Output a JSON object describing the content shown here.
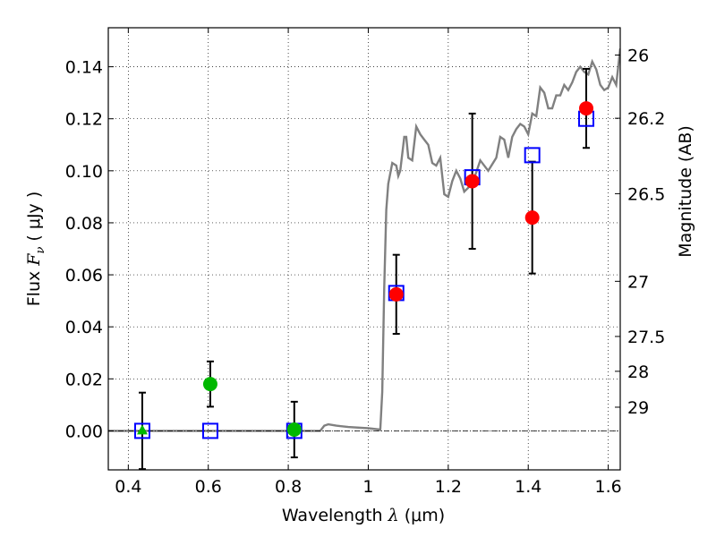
{
  "chart_data": {
    "type": "scatter",
    "xlabel": {
      "prefix": "Wavelength  ",
      "symbol": "λ",
      "unit": " (μm)"
    },
    "ylabel": {
      "prefix": "Flux  ",
      "symbol": "F",
      "sub": "ν",
      "unit": "  ( μJy )"
    },
    "y2label": "Magnitude (AB)",
    "xlim": [
      0.35,
      1.63
    ],
    "ylim": [
      -0.015,
      0.155
    ],
    "grid": true,
    "x_ticks": [
      {
        "v": 0.4,
        "label": "0.4"
      },
      {
        "v": 0.6,
        "label": "0.6"
      },
      {
        "v": 0.8,
        "label": "0.8"
      },
      {
        "v": 1.0,
        "label": "1"
      },
      {
        "v": 1.2,
        "label": "1.2"
      },
      {
        "v": 1.4,
        "label": "1.4"
      },
      {
        "v": 1.6,
        "label": "1.6"
      }
    ],
    "y_ticks": [
      {
        "v": 0.0,
        "label": "0.00"
      },
      {
        "v": 0.02,
        "label": "0.02"
      },
      {
        "v": 0.04,
        "label": "0.04"
      },
      {
        "v": 0.06,
        "label": "0.06"
      },
      {
        "v": 0.08,
        "label": "0.08"
      },
      {
        "v": 0.1,
        "label": "0.10"
      },
      {
        "v": 0.12,
        "label": "0.12"
      },
      {
        "v": 0.14,
        "label": "0.14"
      }
    ],
    "y2_ticks": [
      {
        "flux": 0.1445,
        "label": "26"
      },
      {
        "flux": 0.1202,
        "label": "26.2"
      },
      {
        "flux": 0.0912,
        "label": "26.5"
      },
      {
        "flux": 0.0575,
        "label": "27"
      },
      {
        "flux": 0.0363,
        "label": "27.5"
      },
      {
        "flux": 0.0229,
        "label": "28"
      },
      {
        "flux": 0.0091,
        "label": "29"
      }
    ],
    "model_spectrum": {
      "color": "#808080",
      "x": [
        0.35,
        0.88,
        0.885,
        0.89,
        0.9,
        0.92,
        0.95,
        1.0,
        1.03,
        1.035,
        1.04,
        1.045,
        1.05,
        1.06,
        1.07,
        1.075,
        1.08,
        1.09,
        1.095,
        1.1,
        1.11,
        1.12,
        1.13,
        1.14,
        1.15,
        1.16,
        1.17,
        1.18,
        1.19,
        1.2,
        1.21,
        1.22,
        1.23,
        1.24,
        1.26,
        1.28,
        1.3,
        1.32,
        1.33,
        1.34,
        1.35,
        1.36,
        1.37,
        1.38,
        1.39,
        1.4,
        1.41,
        1.42,
        1.43,
        1.44,
        1.45,
        1.46,
        1.47,
        1.48,
        1.49,
        1.5,
        1.51,
        1.52,
        1.53,
        1.54,
        1.55,
        1.56,
        1.57,
        1.58,
        1.59,
        1.6,
        1.61,
        1.62,
        1.63
      ],
      "y": [
        0.0,
        0.0,
        0.001,
        0.002,
        0.0025,
        0.002,
        0.0015,
        0.001,
        0.0005,
        0.015,
        0.055,
        0.085,
        0.095,
        0.103,
        0.102,
        0.098,
        0.1,
        0.113,
        0.113,
        0.105,
        0.104,
        0.117,
        0.114,
        0.112,
        0.11,
        0.103,
        0.102,
        0.105,
        0.091,
        0.09,
        0.096,
        0.1,
        0.097,
        0.092,
        0.095,
        0.104,
        0.1,
        0.105,
        0.113,
        0.112,
        0.105,
        0.113,
        0.116,
        0.118,
        0.117,
        0.114,
        0.122,
        0.121,
        0.132,
        0.13,
        0.124,
        0.124,
        0.129,
        0.129,
        0.133,
        0.131,
        0.134,
        0.138,
        0.14,
        0.138,
        0.137,
        0.142,
        0.139,
        0.133,
        0.131,
        0.132,
        0.136,
        0.133,
        0.147
      ]
    },
    "series": [
      {
        "role": "observed_detections",
        "color": "#ff0000",
        "marker": "circle",
        "points": [
          {
            "x": 1.07,
            "y": 0.0525,
            "err": 0.0152
          },
          {
            "x": 1.26,
            "y": 0.096,
            "err": 0.026
          },
          {
            "x": 1.41,
            "y": 0.082,
            "err": 0.0215
          },
          {
            "x": 1.545,
            "y": 0.124,
            "err": 0.0152
          }
        ]
      },
      {
        "role": "observed_optical",
        "color": "#00b800",
        "marker": "circle",
        "points": [
          {
            "x": 0.605,
            "y": 0.018,
            "err": 0.0087
          },
          {
            "x": 0.815,
            "y": 0.0005,
            "err": 0.0107
          }
        ]
      },
      {
        "role": "observed_upper_limit",
        "color": "#00b800",
        "marker": "triangle",
        "points": [
          {
            "x": 0.435,
            "y": 0.0,
            "err": 0.0147
          }
        ]
      },
      {
        "role": "model_photometry",
        "color": "#0000ff",
        "marker": "open-square",
        "points": [
          {
            "x": 0.435,
            "y": 0.0
          },
          {
            "x": 0.605,
            "y": 0.0
          },
          {
            "x": 0.815,
            "y": 0.0
          },
          {
            "x": 1.07,
            "y": 0.053
          },
          {
            "x": 1.26,
            "y": 0.0975
          },
          {
            "x": 1.41,
            "y": 0.106
          },
          {
            "x": 1.545,
            "y": 0.12
          }
        ]
      }
    ],
    "zero_line": {
      "y": 0.0,
      "style": "dashdot"
    }
  }
}
